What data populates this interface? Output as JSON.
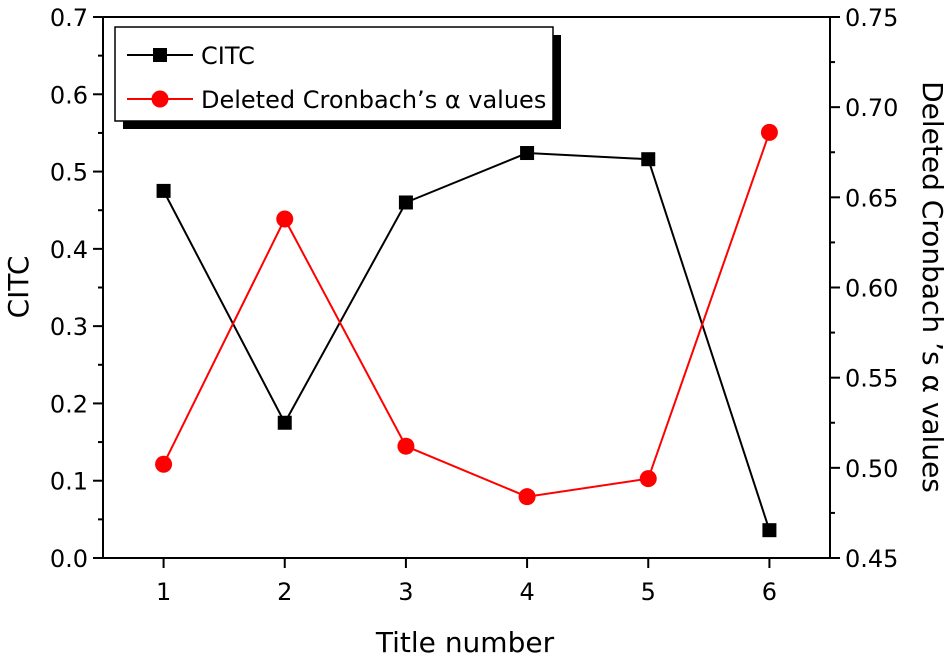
{
  "chart_data": {
    "type": "line",
    "xlabel": "Title number",
    "ylabel_left": "CITC",
    "ylabel_right": "Deleted Cronbach ’s α values",
    "x": [
      1,
      2,
      3,
      4,
      5,
      6
    ],
    "xlim": [
      0.5,
      6.5
    ],
    "x_ticks": [
      "1",
      "2",
      "3",
      "4",
      "5",
      "6"
    ],
    "ylim_left": [
      0.0,
      0.7
    ],
    "y_ticks_left": [
      "0.0",
      "0.1",
      "0.2",
      "0.3",
      "0.4",
      "0.5",
      "0.6",
      "0.7"
    ],
    "ylim_right": [
      0.45,
      0.75
    ],
    "y_ticks_right": [
      "0.45",
      "0.50",
      "0.55",
      "0.60",
      "0.65",
      "0.70",
      "0.75"
    ],
    "grid": false,
    "legend_placement": "top-left",
    "series": [
      {
        "name": "CITC",
        "axis": "left",
        "marker": "square",
        "color": "#000000",
        "values": [
          0.475,
          0.175,
          0.46,
          0.524,
          0.516,
          0.036
        ]
      },
      {
        "name": "Deleted Cronbach’s α values",
        "axis": "right",
        "marker": "circle",
        "color": "#ff0000",
        "values": [
          0.502,
          0.638,
          0.512,
          0.484,
          0.494,
          0.686
        ]
      }
    ]
  }
}
